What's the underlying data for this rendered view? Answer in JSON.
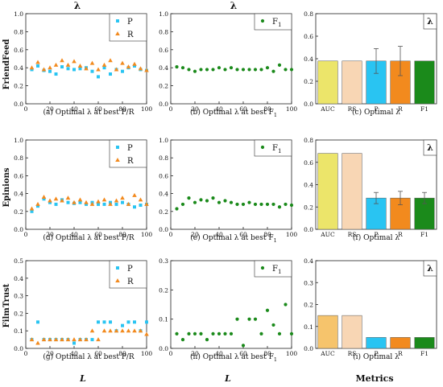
{
  "figure": {
    "column_headers": [
      "λ",
      "λ",
      ""
    ],
    "row_labels": [
      "FriendFeed",
      "Epinions",
      "FilmTrust"
    ],
    "bottom_labels": [
      "L",
      "L",
      "Metrics"
    ]
  },
  "colors": {
    "P": "#29c4f2",
    "R": "#f28a1e",
    "F1": "#1b8a1b",
    "AUC": "#ece56a",
    "RS": "#f8d6b4",
    "AUC_filmtrust": "#f6c46c",
    "bar_edge": "#555555"
  },
  "chart_data": [
    {
      "id": "a",
      "type": "scatter",
      "caption": "(a) Optimal λ at best P/R",
      "ylim": [
        0,
        1
      ],
      "yticks": [
        "0.0",
        "0.2",
        "0.4",
        "0.6",
        "0.8",
        "1.0"
      ],
      "xlim": [
        0,
        100
      ],
      "xticks": [
        "0",
        "20",
        "40",
        "60",
        "80",
        "100"
      ],
      "legend": "top-right",
      "series": [
        {
          "name": "P",
          "marker": "square",
          "x": [
            5,
            10,
            15,
            20,
            25,
            30,
            35,
            40,
            45,
            50,
            55,
            60,
            65,
            70,
            75,
            80,
            85,
            90,
            95,
            100
          ],
          "y": [
            0.38,
            0.42,
            0.37,
            0.36,
            0.33,
            0.41,
            0.39,
            0.38,
            0.39,
            0.4,
            0.36,
            0.3,
            0.4,
            0.33,
            0.38,
            0.36,
            0.4,
            0.42,
            0.38,
            0.37
          ]
        },
        {
          "name": "R",
          "marker": "triangle",
          "x": [
            5,
            10,
            15,
            20,
            25,
            30,
            35,
            40,
            45,
            50,
            55,
            60,
            65,
            70,
            75,
            80,
            85,
            90,
            95,
            100
          ],
          "y": [
            0.4,
            0.46,
            0.38,
            0.4,
            0.43,
            0.48,
            0.43,
            0.47,
            0.42,
            0.39,
            0.45,
            0.38,
            0.43,
            0.48,
            0.38,
            0.45,
            0.41,
            0.44,
            0.39,
            0.37
          ]
        }
      ]
    },
    {
      "id": "b",
      "type": "scatter",
      "caption": "(b) Optimal λ at best F",
      "caption_sub": "1",
      "ylim": [
        0,
        1
      ],
      "yticks": [
        "0.0",
        "0.2",
        "0.4",
        "0.6",
        "0.8",
        "1.0"
      ],
      "xlim": [
        0,
        100
      ],
      "xticks": [
        "0",
        "20",
        "40",
        "60",
        "80",
        "100"
      ],
      "legend": "top-right",
      "series": [
        {
          "name": "F",
          "name_sub": "1",
          "marker": "circle",
          "x": [
            5,
            10,
            15,
            20,
            25,
            30,
            35,
            40,
            45,
            50,
            55,
            60,
            65,
            70,
            75,
            80,
            85,
            90,
            95,
            100
          ],
          "y": [
            0.41,
            0.4,
            0.38,
            0.36,
            0.38,
            0.38,
            0.38,
            0.4,
            0.38,
            0.4,
            0.38,
            0.38,
            0.38,
            0.38,
            0.38,
            0.4,
            0.36,
            0.43,
            0.38,
            0.38
          ]
        }
      ]
    },
    {
      "id": "c",
      "type": "bar",
      "caption": "(c) Optimal λ",
      "legend_label": "λ",
      "ylim": [
        0,
        0.8
      ],
      "yticks": [
        "0.0",
        "0.2",
        "0.4",
        "0.6",
        "0.8"
      ],
      "categories": [
        "AUC",
        "RS",
        "P",
        "R",
        "F1"
      ],
      "values": [
        0.38,
        0.38,
        0.38,
        0.38,
        0.38
      ],
      "errors": [
        0,
        0,
        0.11,
        0.13,
        0
      ],
      "bar_colors": [
        "#ece56a",
        "#f8d6b4",
        "#29c4f2",
        "#f28a1e",
        "#1b8a1b"
      ]
    },
    {
      "id": "d",
      "type": "scatter",
      "caption": "(d) Optimal λ at best P/R",
      "ylim": [
        0,
        1
      ],
      "yticks": [
        "0.0",
        "0.2",
        "0.4",
        "0.6",
        "0.8",
        "1.0"
      ],
      "xlim": [
        0,
        100
      ],
      "xticks": [
        "0",
        "20",
        "40",
        "60",
        "80",
        "100"
      ],
      "legend": "top-right",
      "series": [
        {
          "name": "P",
          "marker": "square",
          "x": [
            5,
            10,
            15,
            20,
            25,
            30,
            35,
            40,
            45,
            50,
            55,
            60,
            65,
            70,
            75,
            80,
            85,
            90,
            95,
            100
          ],
          "y": [
            0.2,
            0.26,
            0.34,
            0.3,
            0.28,
            0.33,
            0.3,
            0.29,
            0.3,
            0.28,
            0.3,
            0.28,
            0.28,
            0.3,
            0.28,
            0.3,
            0.28,
            0.25,
            0.27,
            0.28
          ]
        },
        {
          "name": "R",
          "marker": "triangle",
          "x": [
            5,
            10,
            15,
            20,
            25,
            30,
            35,
            40,
            45,
            50,
            55,
            60,
            65,
            70,
            75,
            80,
            85,
            90,
            95,
            100
          ],
          "y": [
            0.23,
            0.28,
            0.36,
            0.32,
            0.34,
            0.32,
            0.35,
            0.3,
            0.33,
            0.3,
            0.28,
            0.31,
            0.33,
            0.28,
            0.32,
            0.35,
            0.28,
            0.38,
            0.33,
            0.28
          ]
        }
      ]
    },
    {
      "id": "e",
      "type": "scatter",
      "caption": "(e) Optimal λ at best F",
      "caption_sub": "1",
      "ylim": [
        0,
        1
      ],
      "yticks": [
        "0.0",
        "0.2",
        "0.4",
        "0.6",
        "0.8",
        "1.0"
      ],
      "xlim": [
        0,
        100
      ],
      "xticks": [
        "0",
        "20",
        "40",
        "60",
        "80",
        "100"
      ],
      "legend": "top-right",
      "series": [
        {
          "name": "F",
          "name_sub": "1",
          "marker": "circle",
          "x": [
            5,
            10,
            15,
            20,
            25,
            30,
            35,
            40,
            45,
            50,
            55,
            60,
            65,
            70,
            75,
            80,
            85,
            90,
            95,
            100
          ],
          "y": [
            0.23,
            0.28,
            0.35,
            0.3,
            0.33,
            0.32,
            0.35,
            0.3,
            0.32,
            0.3,
            0.28,
            0.28,
            0.3,
            0.28,
            0.28,
            0.28,
            0.28,
            0.25,
            0.28,
            0.27
          ]
        }
      ]
    },
    {
      "id": "f",
      "type": "bar",
      "caption": "(f) Optimal λ",
      "legend_label": "λ",
      "ylim": [
        0,
        0.8
      ],
      "yticks": [
        "0.0",
        "0.2",
        "0.4",
        "0.6",
        "0.8"
      ],
      "categories": [
        "AUC",
        "RS",
        "P",
        "R",
        "F1"
      ],
      "values": [
        0.68,
        0.68,
        0.28,
        0.28,
        0.28
      ],
      "errors": [
        0,
        0,
        0.05,
        0.06,
        0.05
      ],
      "bar_colors": [
        "#ece56a",
        "#f8d6b4",
        "#29c4f2",
        "#f28a1e",
        "#1b8a1b"
      ]
    },
    {
      "id": "g",
      "type": "scatter",
      "caption": "(g) Optimal λ at best P/R",
      "ylim": [
        0,
        0.5
      ],
      "yticks": [
        "0.0",
        "0.1",
        "0.2",
        "0.3",
        "0.4",
        "0.5"
      ],
      "xlim": [
        0,
        100
      ],
      "xticks": [
        "0",
        "20",
        "40",
        "60",
        "80",
        "100"
      ],
      "legend": "top-right",
      "series": [
        {
          "name": "P",
          "marker": "square",
          "x": [
            5,
            10,
            15,
            20,
            25,
            30,
            35,
            40,
            45,
            50,
            55,
            60,
            65,
            70,
            75,
            80,
            85,
            90,
            95,
            100
          ],
          "y": [
            0.05,
            0.15,
            0.05,
            0.05,
            0.05,
            0.05,
            0.05,
            0.03,
            0.05,
            0.05,
            0.05,
            0.15,
            0.15,
            0.15,
            0.1,
            0.13,
            0.15,
            0.15,
            0.1,
            0.15
          ]
        },
        {
          "name": "R",
          "marker": "triangle",
          "x": [
            5,
            10,
            15,
            20,
            25,
            30,
            35,
            40,
            45,
            50,
            55,
            60,
            65,
            70,
            75,
            80,
            85,
            90,
            95,
            100
          ],
          "y": [
            0.05,
            0.03,
            0.05,
            0.05,
            0.05,
            0.05,
            0.05,
            0.05,
            0.05,
            0.05,
            0.1,
            0.05,
            0.1,
            0.1,
            0.1,
            0.1,
            0.1,
            0.1,
            0.1,
            0.08
          ]
        }
      ]
    },
    {
      "id": "h",
      "type": "scatter",
      "caption": "(h) Optimal λ at best F",
      "caption_sub": "1",
      "ylim": [
        0,
        0.3
      ],
      "yticks": [
        "0.0",
        "0.1",
        "0.2",
        "0.3"
      ],
      "xlim": [
        0,
        100
      ],
      "xticks": [
        "0",
        "20",
        "40",
        "60",
        "80",
        "100"
      ],
      "legend": "top-right",
      "series": [
        {
          "name": "F",
          "name_sub": "1",
          "marker": "circle",
          "x": [
            5,
            10,
            15,
            20,
            25,
            30,
            35,
            40,
            45,
            50,
            55,
            60,
            65,
            70,
            75,
            80,
            85,
            90,
            95,
            100
          ],
          "y": [
            0.05,
            0.03,
            0.05,
            0.05,
            0.05,
            0.03,
            0.05,
            0.05,
            0.05,
            0.05,
            0.1,
            0.01,
            0.1,
            0.1,
            0.05,
            0.13,
            0.08,
            0.05,
            0.15,
            0.05
          ]
        }
      ]
    },
    {
      "id": "i",
      "type": "bar",
      "caption": "(i) Optimal λ",
      "legend_label": "λ",
      "ylim": [
        0,
        0.4
      ],
      "yticks": [
        "0.0",
        "0.1",
        "0.2",
        "0.3",
        "0.4"
      ],
      "categories": [
        "AUC",
        "RS",
        "P",
        "R",
        "F1"
      ],
      "values": [
        0.15,
        0.15,
        0.05,
        0.05,
        0.05
      ],
      "errors": [
        0,
        0,
        0,
        0,
        0
      ],
      "bar_colors": [
        "#f6c46c",
        "#f8d6b4",
        "#29c4f2",
        "#f28a1e",
        "#1b8a1b"
      ]
    }
  ]
}
